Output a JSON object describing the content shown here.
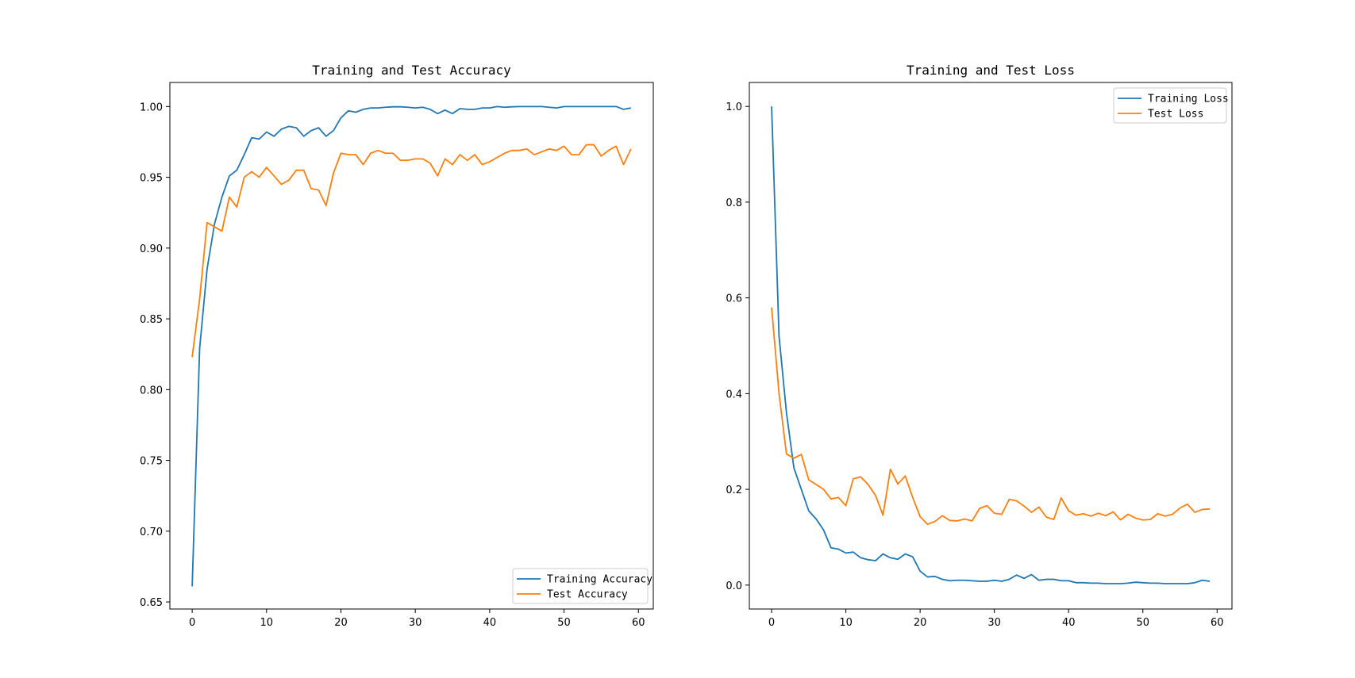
{
  "chart_data": [
    {
      "type": "line",
      "title": "Training and Test Accuracy",
      "xlabel": "",
      "ylabel": "",
      "xlim": [
        -3,
        62
      ],
      "ylim": [
        0.645,
        1.017
      ],
      "xticks": [
        0,
        10,
        20,
        30,
        40,
        50,
        60
      ],
      "yticks": [
        0.65,
        0.7,
        0.75,
        0.8,
        0.85,
        0.9,
        0.95,
        1.0
      ],
      "ytick_labels": [
        "0.65",
        "0.70",
        "0.75",
        "0.80",
        "0.85",
        "0.90",
        "0.95",
        "1.00"
      ],
      "legend_position": "lower-right",
      "grid": false,
      "series": [
        {
          "name": "Training Accuracy",
          "color": "#1f77b4",
          "x": [
            0,
            1,
            2,
            3,
            4,
            5,
            6,
            7,
            8,
            9,
            10,
            11,
            12,
            13,
            14,
            15,
            16,
            17,
            18,
            19,
            20,
            21,
            22,
            23,
            24,
            25,
            26,
            27,
            28,
            29,
            30,
            31,
            32,
            33,
            34,
            35,
            36,
            37,
            38,
            39,
            40,
            41,
            42,
            43,
            44,
            45,
            46,
            47,
            48,
            49,
            50,
            51,
            52,
            53,
            54,
            55,
            56,
            57,
            58,
            59
          ],
          "values": [
            0.661,
            0.829,
            0.885,
            0.917,
            0.936,
            0.951,
            0.955,
            0.966,
            0.978,
            0.977,
            0.982,
            0.979,
            0.984,
            0.986,
            0.985,
            0.979,
            0.983,
            0.985,
            0.979,
            0.983,
            0.992,
            0.997,
            0.996,
            0.998,
            0.999,
            0.999,
            0.9995,
            0.9998,
            0.9998,
            0.9995,
            0.999,
            0.9995,
            0.998,
            0.995,
            0.9975,
            0.995,
            0.9985,
            0.998,
            0.998,
            0.999,
            0.999,
            1.0,
            0.9995,
            0.9998,
            1.0,
            1.0,
            1.0,
            1.0,
            0.9995,
            0.999,
            1.0,
            1.0,
            1.0,
            1.0,
            1.0,
            1.0,
            1.0,
            1.0,
            0.998,
            0.999
          ]
        },
        {
          "name": "Test Accuracy",
          "color": "#ff7f0e",
          "x": [
            0,
            1,
            2,
            3,
            4,
            5,
            6,
            7,
            8,
            9,
            10,
            11,
            12,
            13,
            14,
            15,
            16,
            17,
            18,
            19,
            20,
            21,
            22,
            23,
            24,
            25,
            26,
            27,
            28,
            29,
            30,
            31,
            32,
            33,
            34,
            35,
            36,
            37,
            38,
            39,
            40,
            41,
            42,
            43,
            44,
            45,
            46,
            47,
            48,
            49,
            50,
            51,
            52,
            53,
            54,
            55,
            56,
            57,
            58,
            59
          ],
          "values": [
            0.823,
            0.864,
            0.918,
            0.915,
            0.912,
            0.936,
            0.929,
            0.95,
            0.954,
            0.95,
            0.957,
            0.951,
            0.945,
            0.948,
            0.955,
            0.955,
            0.942,
            0.941,
            0.93,
            0.953,
            0.967,
            0.966,
            0.966,
            0.959,
            0.967,
            0.969,
            0.967,
            0.967,
            0.962,
            0.962,
            0.963,
            0.963,
            0.96,
            0.951,
            0.963,
            0.959,
            0.966,
            0.962,
            0.966,
            0.959,
            0.961,
            0.964,
            0.967,
            0.969,
            0.969,
            0.97,
            0.966,
            0.968,
            0.97,
            0.969,
            0.972,
            0.966,
            0.966,
            0.973,
            0.973,
            0.965,
            0.969,
            0.972,
            0.959,
            0.97
          ]
        }
      ]
    },
    {
      "type": "line",
      "title": "Training and Test Loss",
      "xlabel": "",
      "ylabel": "",
      "xlim": [
        -3,
        62
      ],
      "ylim": [
        -0.05,
        1.05
      ],
      "xticks": [
        0,
        10,
        20,
        30,
        40,
        50,
        60
      ],
      "yticks": [
        0.0,
        0.2,
        0.4,
        0.6,
        0.8,
        1.0
      ],
      "ytick_labels": [
        "0.0",
        "0.2",
        "0.4",
        "0.6",
        "0.8",
        "1.0"
      ],
      "legend_position": "upper-right",
      "grid": false,
      "series": [
        {
          "name": "Training Loss",
          "color": "#1f77b4",
          "x": [
            0,
            1,
            2,
            3,
            4,
            5,
            6,
            7,
            8,
            9,
            10,
            11,
            12,
            13,
            14,
            15,
            16,
            17,
            18,
            19,
            20,
            21,
            22,
            23,
            24,
            25,
            26,
            27,
            28,
            29,
            30,
            31,
            32,
            33,
            34,
            35,
            36,
            37,
            38,
            39,
            40,
            41,
            42,
            43,
            44,
            45,
            46,
            47,
            48,
            49,
            50,
            51,
            52,
            53,
            54,
            55,
            56,
            57,
            58,
            59
          ],
          "values": [
            1.0,
            0.52,
            0.36,
            0.245,
            0.2,
            0.155,
            0.138,
            0.115,
            0.078,
            0.075,
            0.067,
            0.069,
            0.057,
            0.053,
            0.051,
            0.065,
            0.057,
            0.054,
            0.065,
            0.059,
            0.029,
            0.017,
            0.018,
            0.012,
            0.009,
            0.01,
            0.01,
            0.009,
            0.008,
            0.008,
            0.01,
            0.008,
            0.012,
            0.021,
            0.014,
            0.022,
            0.01,
            0.012,
            0.012,
            0.009,
            0.009,
            0.005,
            0.005,
            0.004,
            0.004,
            0.003,
            0.003,
            0.003,
            0.004,
            0.006,
            0.005,
            0.004,
            0.004,
            0.003,
            0.003,
            0.003,
            0.003,
            0.005,
            0.01,
            0.008
          ]
        },
        {
          "name": "Test Loss",
          "color": "#ff7f0e",
          "x": [
            0,
            1,
            2,
            3,
            4,
            5,
            6,
            7,
            8,
            9,
            10,
            11,
            12,
            13,
            14,
            15,
            16,
            17,
            18,
            19,
            20,
            21,
            22,
            23,
            24,
            25,
            26,
            27,
            28,
            29,
            30,
            31,
            32,
            33,
            34,
            35,
            36,
            37,
            38,
            39,
            40,
            41,
            42,
            43,
            44,
            45,
            46,
            47,
            48,
            49,
            50,
            51,
            52,
            53,
            54,
            55,
            56,
            57,
            58,
            59
          ],
          "values": [
            0.58,
            0.4,
            0.274,
            0.265,
            0.273,
            0.22,
            0.21,
            0.2,
            0.18,
            0.183,
            0.166,
            0.222,
            0.226,
            0.21,
            0.187,
            0.146,
            0.242,
            0.211,
            0.228,
            0.183,
            0.143,
            0.127,
            0.133,
            0.145,
            0.135,
            0.134,
            0.138,
            0.134,
            0.16,
            0.166,
            0.15,
            0.148,
            0.179,
            0.176,
            0.165,
            0.152,
            0.163,
            0.142,
            0.137,
            0.182,
            0.155,
            0.146,
            0.149,
            0.144,
            0.15,
            0.145,
            0.153,
            0.136,
            0.148,
            0.14,
            0.136,
            0.137,
            0.149,
            0.144,
            0.148,
            0.161,
            0.169,
            0.152,
            0.158,
            0.159
          ]
        }
      ]
    }
  ]
}
